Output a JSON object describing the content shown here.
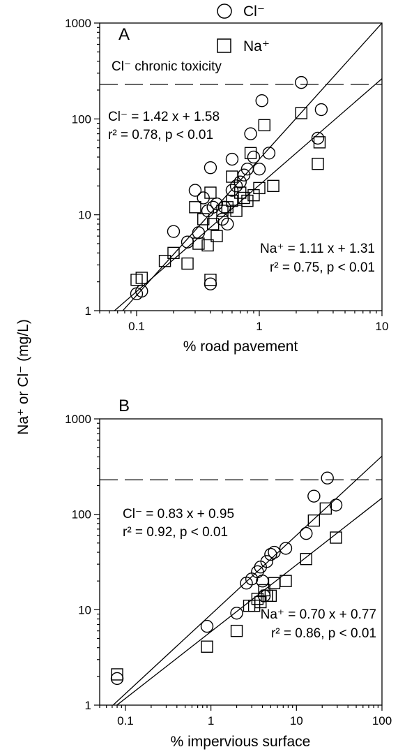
{
  "ylabel": "Na⁺ or Cl⁻ (mg/L)",
  "legend": {
    "cl": "Cl⁻",
    "na": "Na⁺"
  },
  "colors": {
    "ink": "#000000",
    "bg": "#ffffff"
  },
  "chart_data": [
    {
      "type": "scatter",
      "panel_label": "A",
      "xlabel": "% road pavement",
      "xscale": "log",
      "yscale": "log",
      "xlim": [
        0.05,
        10
      ],
      "ylim": [
        1,
        1000
      ],
      "xticks": [
        0.1,
        1,
        10
      ],
      "yticks": [
        1,
        10,
        100,
        1000
      ],
      "xtick_labels": [
        "0.1",
        "1",
        "10"
      ],
      "ytick_labels": [
        "1",
        "10",
        "100",
        "1000"
      ],
      "threshold": {
        "y": 230,
        "label": "Cl⁻ chronic toxicity"
      },
      "legend_position": "top",
      "series": [
        {
          "name": "Cl⁻",
          "marker": "circle",
          "x": [
            0.1,
            0.11,
            0.2,
            0.26,
            0.3,
            0.32,
            0.35,
            0.38,
            0.4,
            0.4,
            0.42,
            0.45,
            0.5,
            0.52,
            0.55,
            0.6,
            0.6,
            0.65,
            0.7,
            0.75,
            0.8,
            0.85,
            0.9,
            1.0,
            1.05,
            1.2,
            2.2,
            3.0,
            3.2
          ],
          "y": [
            1.5,
            1.6,
            6.7,
            5.2,
            18,
            6.5,
            15,
            11,
            31,
            1.9,
            12,
            13,
            9,
            12,
            8,
            18,
            38,
            20,
            22,
            26,
            30,
            70,
            40,
            30,
            155,
            44,
            240,
            63,
            125
          ]
        },
        {
          "name": "Na⁺",
          "marker": "square",
          "x": [
            0.1,
            0.11,
            0.17,
            0.2,
            0.26,
            0.3,
            0.32,
            0.35,
            0.38,
            0.4,
            0.4,
            0.42,
            0.45,
            0.5,
            0.55,
            0.6,
            0.6,
            0.65,
            0.7,
            0.75,
            0.8,
            0.85,
            0.9,
            1.0,
            1.1,
            1.3,
            2.2,
            3.0,
            3.1
          ],
          "y": [
            2.1,
            2.2,
            3.3,
            4.0,
            3.1,
            12,
            5,
            9,
            4.8,
            2.1,
            17,
            8,
            6,
            11,
            12,
            14,
            25,
            11,
            17,
            15,
            14,
            44,
            16,
            19,
            86,
            20,
            115,
            34,
            57
          ]
        }
      ],
      "fits": [
        {
          "name": "Cl⁻",
          "slope": 1.42,
          "intercept": 1.58,
          "equation": "Cl⁻ = 1.42 x + 1.58",
          "stats": "r² = 0.78, p < 0.01"
        },
        {
          "name": "Na⁺",
          "slope": 1.11,
          "intercept": 1.31,
          "equation": "Na⁺ = 1.11 x + 1.31",
          "stats": "r² = 0.75, p < 0.01"
        }
      ]
    },
    {
      "type": "scatter",
      "panel_label": "B",
      "xlabel": "% impervious surface",
      "xscale": "log",
      "yscale": "log",
      "xlim": [
        0.05,
        100
      ],
      "ylim": [
        1,
        1000
      ],
      "xticks": [
        0.1,
        1,
        10,
        100
      ],
      "yticks": [
        1,
        10,
        100,
        1000
      ],
      "xtick_labels": [
        "0.1",
        "1",
        "10",
        "100"
      ],
      "ytick_labels": [
        "1",
        "10",
        "100",
        "1000"
      ],
      "threshold": {
        "y": 230,
        "label": ""
      },
      "series": [
        {
          "name": "Cl⁻",
          "marker": "circle",
          "x": [
            0.08,
            0.9,
            2.0,
            2.6,
            3.0,
            3.5,
            3.8,
            4.0,
            4.2,
            4.5,
            5.0,
            5.5,
            7.5,
            13,
            16,
            23,
            29
          ],
          "y": [
            1.9,
            6.7,
            9.2,
            19,
            21,
            25,
            28,
            20,
            14,
            32,
            38,
            40,
            44,
            63,
            155,
            240,
            125
          ]
        },
        {
          "name": "Na⁺",
          "marker": "square",
          "x": [
            0.08,
            0.9,
            2.0,
            2.8,
            3.2,
            3.5,
            3.8,
            4.2,
            4.5,
            5.0,
            5.5,
            7.5,
            13,
            16,
            22,
            29
          ],
          "y": [
            2.1,
            4.1,
            6.0,
            11,
            11,
            13,
            12,
            16,
            14,
            14,
            19,
            20,
            34,
            86,
            115,
            57
          ]
        }
      ],
      "fits": [
        {
          "name": "Cl⁻",
          "slope": 0.83,
          "intercept": 0.95,
          "equation": "Cl⁻ = 0.83 x + 0.95",
          "stats": "r² = 0.92, p < 0.01"
        },
        {
          "name": "Na⁺",
          "slope": 0.7,
          "intercept": 0.77,
          "equation": "Na⁺ = 0.70 x + 0.77",
          "stats": "r² = 0.86, p < 0.01"
        }
      ]
    }
  ]
}
